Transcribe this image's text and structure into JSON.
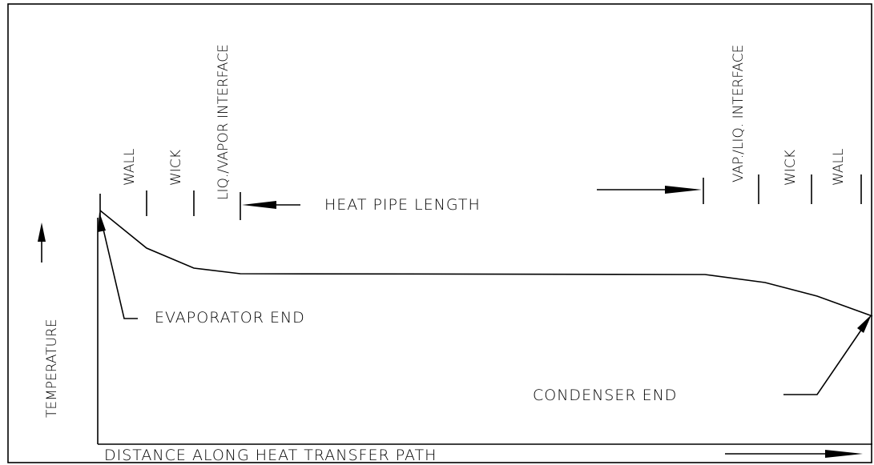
{
  "labels": {
    "evap_wall": "WALL",
    "evap_wick": "WICK",
    "evap_interface": "LIQ./VAPOR INTERFACE",
    "length": "HEAT PIPE LENGTH",
    "cond_interface": "VAP./LIQ. INTERFACE",
    "cond_wick": "WICK",
    "cond_wall": "WALL",
    "y_axis": "TEMPERATURE",
    "evaporator": "EVAPORATOR END",
    "condenser": "CONDENSER END",
    "x_axis": "DISTANCE ALONG HEAT TRANSFER PATH"
  }
}
